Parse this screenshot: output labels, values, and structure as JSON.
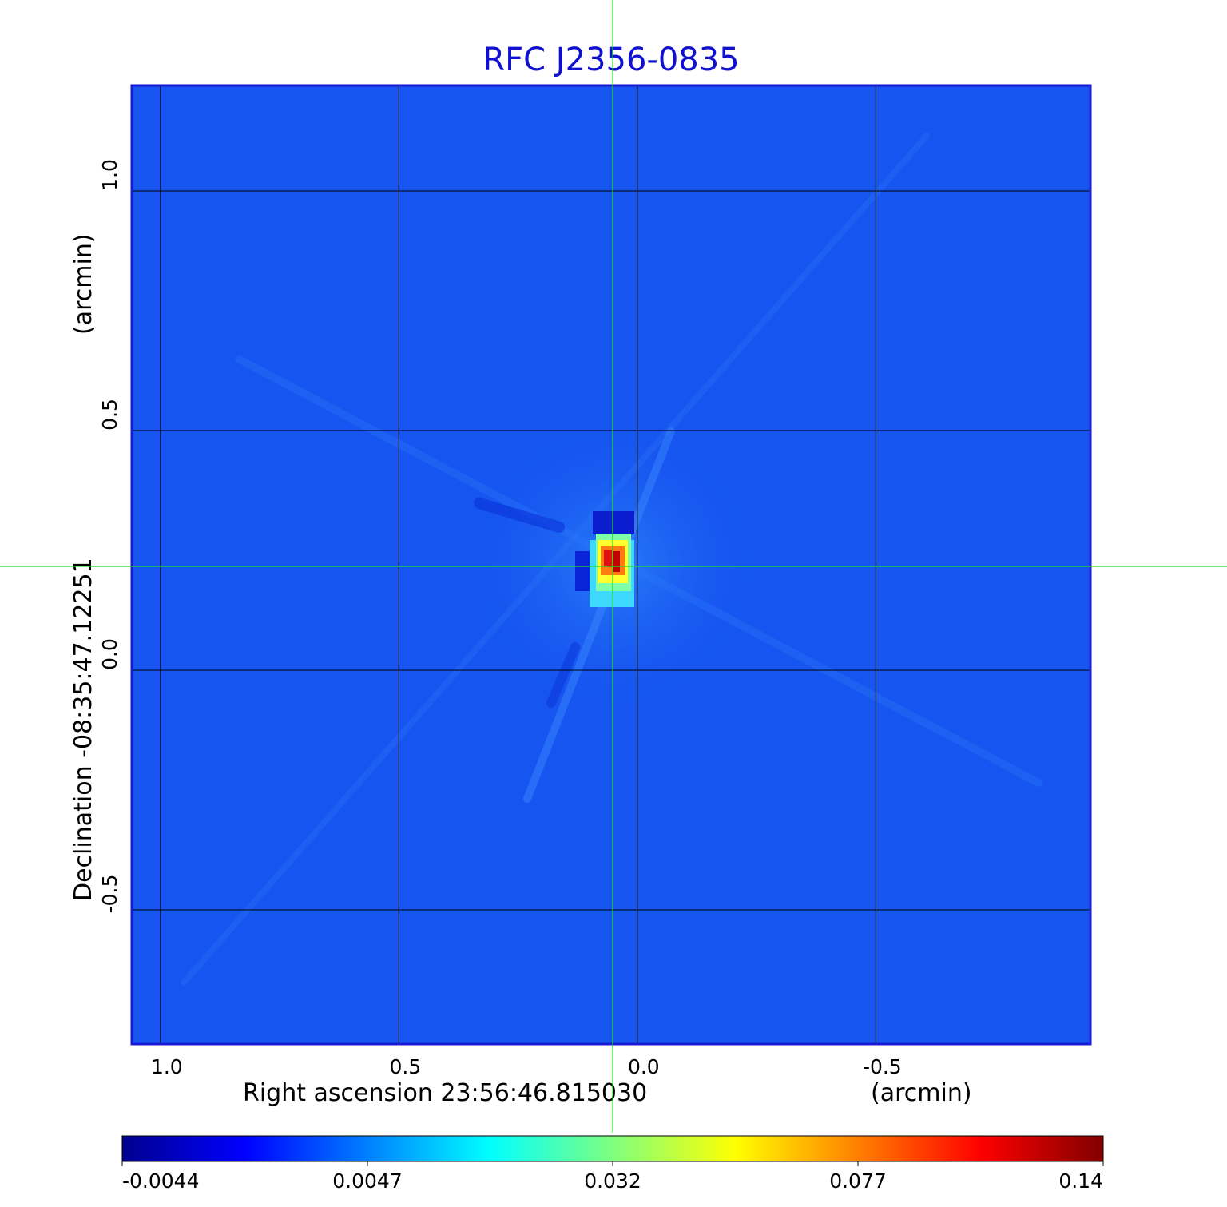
{
  "chart_data": {
    "type": "heatmap",
    "title": "RFC J2356-0835",
    "xlabel": "Right ascension  23:56:46.815030",
    "xlabel_unit": "(arcmin)",
    "ylabel": "Declination  -08:35:47.12251",
    "ylabel_unit": "(arcmin)",
    "xlim": [
      1.06,
      -0.95
    ],
    "ylim": [
      -0.78,
      1.22
    ],
    "x_ticks": [
      1.0,
      0.5,
      0.0,
      -0.5
    ],
    "x_tick_labels": [
      "1.0",
      "0.5",
      "0.0",
      "-0.5"
    ],
    "y_ticks": [
      1.0,
      0.5,
      0.0,
      -0.5
    ],
    "y_tick_labels": [
      "1.0",
      "0.5",
      "0.0",
      "-0.5"
    ],
    "grid": true,
    "crosshair": {
      "x": 0.05,
      "y": 0.215
    },
    "source_peak": {
      "x": 0.05,
      "y": 0.215,
      "value": 0.14
    },
    "background_level": 0.0,
    "colormap": "jet",
    "colorbar": {
      "ticks": [
        -0.0044,
        0.0047,
        0.032,
        0.077,
        0.14
      ],
      "tick_labels": [
        "-0.0044",
        "0.0047",
        "0.032",
        "0.077",
        "0.14"
      ]
    },
    "colors": {
      "title": "#1010d0",
      "frame": "#1a1ad8",
      "background": "#1655f0",
      "grid": "#000000",
      "crosshair": "#22e022"
    }
  }
}
